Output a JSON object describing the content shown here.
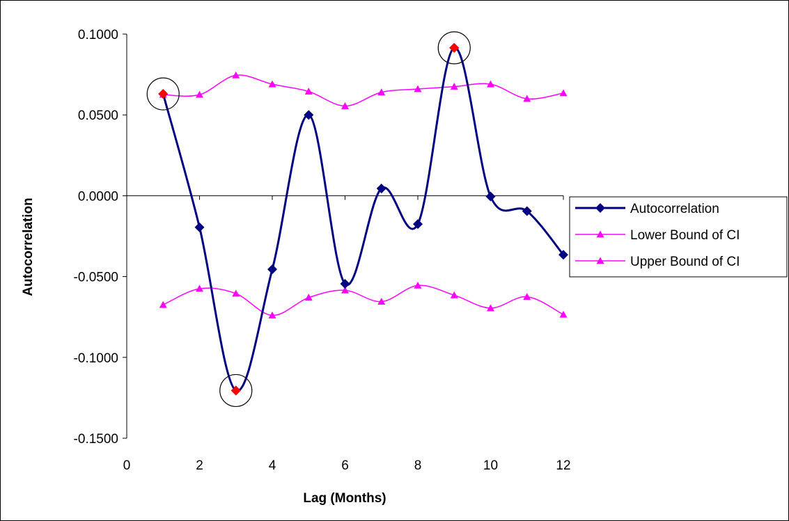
{
  "chart_data": {
    "type": "line",
    "title": "",
    "xlabel": "Lag (Months)",
    "ylabel": "Autocorrelation",
    "xlim": [
      0,
      12
    ],
    "ylim": [
      -0.15,
      0.1
    ],
    "x_ticks": [
      "0",
      "2",
      "4",
      "6",
      "8",
      "10",
      "12"
    ],
    "y_ticks": [
      "0.1000",
      "0.0500",
      "0.0000",
      "-0.0500",
      "-0.1000",
      "-0.1500"
    ],
    "x": [
      1,
      2,
      3,
      4,
      5,
      6,
      7,
      8,
      9,
      10,
      11,
      12
    ],
    "legend_position": "right",
    "series": [
      {
        "name": "Autocorrelation",
        "color": "#000080",
        "marker": "diamond",
        "values": [
          0.063,
          -0.0195,
          -0.1205,
          -0.0455,
          0.05,
          -0.0545,
          0.0045,
          -0.0175,
          0.0915,
          -0.0005,
          -0.0095,
          -0.0365
        ]
      },
      {
        "name": "Lower Bound of CI",
        "color": "#ff00ff",
        "marker": "triangle",
        "values": [
          -0.0675,
          -0.0575,
          -0.0605,
          -0.074,
          -0.063,
          -0.0585,
          -0.0655,
          -0.0555,
          -0.0615,
          -0.0695,
          -0.0625,
          -0.0735
        ]
      },
      {
        "name": "Upper Bound of CI",
        "color": "#ff00ff",
        "marker": "triangle",
        "values": [
          0.0625,
          0.0625,
          0.0745,
          0.069,
          0.0645,
          0.0555,
          0.064,
          0.066,
          0.0675,
          0.069,
          0.06,
          0.0635
        ]
      }
    ],
    "highlighted_points": [
      {
        "x": 1,
        "y": 0.063
      },
      {
        "x": 3,
        "y": -0.1205
      },
      {
        "x": 9,
        "y": 0.0915
      }
    ],
    "highlight_color": "#ff0000"
  }
}
